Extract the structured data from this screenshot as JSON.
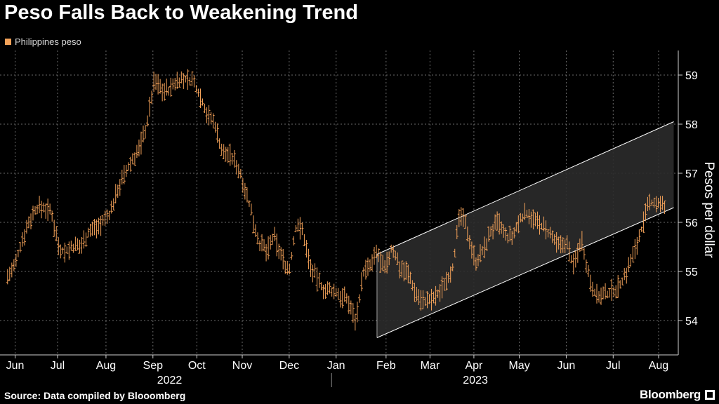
{
  "title": "Peso Falls Back to Weakening Trend",
  "legend": {
    "label": "Philippines peso",
    "color": "#f4a259"
  },
  "source": "Source: Data compiled by Blooomberg",
  "brand": "Bloomberg",
  "colors": {
    "background": "#000000",
    "series": "#f4a259",
    "channel_fill": "#2b2b2b",
    "channel_edge": "#ffffff",
    "grid": "#6a6a6a"
  },
  "chart_data": {
    "type": "line",
    "style": "ohlc-bars",
    "series": [
      {
        "name": "Philippines peso",
        "x": [
          "2022-06-01",
          "2022-06-06",
          "2022-06-10",
          "2022-06-15",
          "2022-06-20",
          "2022-06-25",
          "2022-06-30",
          "2022-07-05",
          "2022-07-09",
          "2022-07-14",
          "2022-07-19",
          "2022-07-24",
          "2022-07-29",
          "2022-08-03",
          "2022-08-08",
          "2022-08-13",
          "2022-08-18",
          "2022-08-23",
          "2022-08-27",
          "2022-09-01",
          "2022-09-06",
          "2022-09-11",
          "2022-09-16",
          "2022-09-21",
          "2022-09-26",
          "2022-10-01",
          "2022-10-06",
          "2022-10-11",
          "2022-10-16",
          "2022-10-21",
          "2022-10-25",
          "2022-10-30",
          "2022-11-04",
          "2022-11-09",
          "2022-11-14",
          "2022-11-19",
          "2022-11-24",
          "2022-11-29",
          "2022-12-04",
          "2022-12-09",
          "2022-12-13",
          "2022-12-18",
          "2022-12-23",
          "2022-12-28",
          "2023-01-02",
          "2023-01-07",
          "2023-01-12",
          "2023-01-17",
          "2023-01-22",
          "2023-01-27",
          "2023-01-31",
          "2023-02-05",
          "2023-02-10",
          "2023-02-15",
          "2023-02-20",
          "2023-02-25",
          "2023-03-02",
          "2023-03-07",
          "2023-03-12",
          "2023-03-17",
          "2023-03-22",
          "2023-03-27",
          "2023-04-01",
          "2023-04-06",
          "2023-04-11",
          "2023-04-16",
          "2023-04-21",
          "2023-04-26",
          "2023-05-01",
          "2023-05-06",
          "2023-05-11",
          "2023-05-16",
          "2023-05-21",
          "2023-05-26",
          "2023-05-31",
          "2023-06-05",
          "2023-06-10",
          "2023-06-15",
          "2023-06-20",
          "2023-06-25",
          "2023-06-30",
          "2023-07-05",
          "2023-07-10",
          "2023-07-15",
          "2023-07-20",
          "2023-07-25",
          "2023-07-30",
          "2023-08-04",
          "2023-08-09"
        ],
        "values": [
          54.9,
          55.1,
          55.6,
          56.0,
          56.3,
          56.3,
          56.2,
          55.5,
          55.4,
          55.5,
          55.5,
          55.8,
          55.9,
          56.0,
          56.2,
          56.7,
          57.0,
          57.3,
          57.5,
          58.0,
          58.9,
          58.7,
          58.7,
          58.9,
          58.9,
          58.9,
          58.6,
          58.2,
          58.0,
          57.4,
          57.4,
          57.2,
          56.8,
          56.2,
          55.6,
          55.4,
          55.7,
          55.3,
          55.0,
          56.0,
          55.8,
          55.1,
          54.8,
          54.6,
          54.6,
          54.5,
          54.4,
          54.0,
          55.0,
          55.1,
          55.4,
          55.0,
          55.5,
          55.1,
          55.0,
          54.6,
          54.4,
          54.4,
          54.5,
          54.8,
          55.1,
          56.2,
          55.8,
          55.2,
          55.4,
          55.8,
          56.0,
          55.7,
          55.7,
          56.1,
          56.2,
          56.0,
          55.9,
          55.7,
          55.5,
          55.6,
          55.1,
          55.7,
          54.9,
          54.5,
          54.5,
          54.6,
          54.7,
          55.0,
          55.4,
          55.9,
          56.4,
          56.4,
          56.3
        ]
      }
    ],
    "channel": {
      "x": [
        "2023-01-31",
        "2023-08-15"
      ],
      "upper": [
        55.35,
        58.05
      ],
      "lower": [
        53.65,
        56.3
      ]
    },
    "ylabel": "Pesos per dollar",
    "ylim": [
      53.3,
      59.5
    ],
    "yticks": [
      54,
      55,
      56,
      57,
      58,
      59
    ],
    "xlim": [
      "2022-05-27",
      "2023-08-18"
    ],
    "xticks": [
      {
        "label": "Jun",
        "date": "2022-06-06"
      },
      {
        "label": "Jul",
        "date": "2022-07-04"
      },
      {
        "label": "Aug",
        "date": "2022-08-05"
      },
      {
        "label": "Sep",
        "date": "2022-09-05"
      },
      {
        "label": "Oct",
        "date": "2022-10-04"
      },
      {
        "label": "Nov",
        "date": "2022-11-03"
      },
      {
        "label": "Dec",
        "date": "2022-12-04"
      },
      {
        "label": "Jan",
        "date": "2023-01-04"
      },
      {
        "label": "Feb",
        "date": "2023-02-06"
      },
      {
        "label": "Mar",
        "date": "2023-03-07"
      },
      {
        "label": "Apr",
        "date": "2023-04-05"
      },
      {
        "label": "May",
        "date": "2023-05-05"
      },
      {
        "label": "Jun",
        "date": "2023-06-05"
      },
      {
        "label": "Jul",
        "date": "2023-07-06"
      },
      {
        "label": "Aug",
        "date": "2023-08-05"
      }
    ],
    "year_labels": [
      {
        "label": "2022",
        "date": "2022-09-16"
      },
      {
        "label": "2023",
        "date": "2023-04-06"
      }
    ],
    "year_divider": "2023-01-01",
    "grid": true,
    "legend_position": "top-left"
  }
}
